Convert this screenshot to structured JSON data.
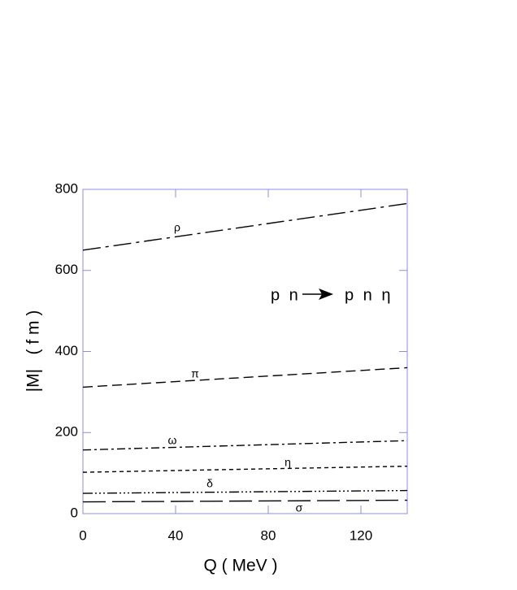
{
  "chart_data": {
    "type": "line",
    "x_label": "Q ( MeV )",
    "y_label": "|M|   ( f m )",
    "reaction_from": "p n",
    "reaction_to": "p n η",
    "x": [
      0,
      140
    ],
    "series": [
      {
        "name": "ρ",
        "color": "#000000",
        "dash": "22 6 4 6",
        "values": [
          650,
          765
        ]
      },
      {
        "name": "π",
        "color": "#000000",
        "dash": "12 6",
        "values": [
          312,
          360
        ]
      },
      {
        "name": "ω",
        "color": "#000000",
        "dash": "10 4 3 4",
        "values": [
          157,
          180
        ]
      },
      {
        "name": "η",
        "color": "#000000",
        "dash": "5 4",
        "values": [
          102,
          117
        ]
      },
      {
        "name": "δ",
        "color": "#000000",
        "dash": "12 3 2 3 2 3 2 3",
        "values": [
          50,
          57
        ]
      },
      {
        "name": "σ",
        "color": "#000000",
        "dash": "28 8",
        "values": [
          29,
          33
        ]
      }
    ],
    "xlim": [
      0,
      140
    ],
    "xticks": [
      0,
      40,
      80,
      120
    ],
    "ylim": [
      0,
      800
    ],
    "yticks": [
      0,
      200,
      400,
      600,
      800
    ],
    "frame_color": "#8c8ce6"
  }
}
